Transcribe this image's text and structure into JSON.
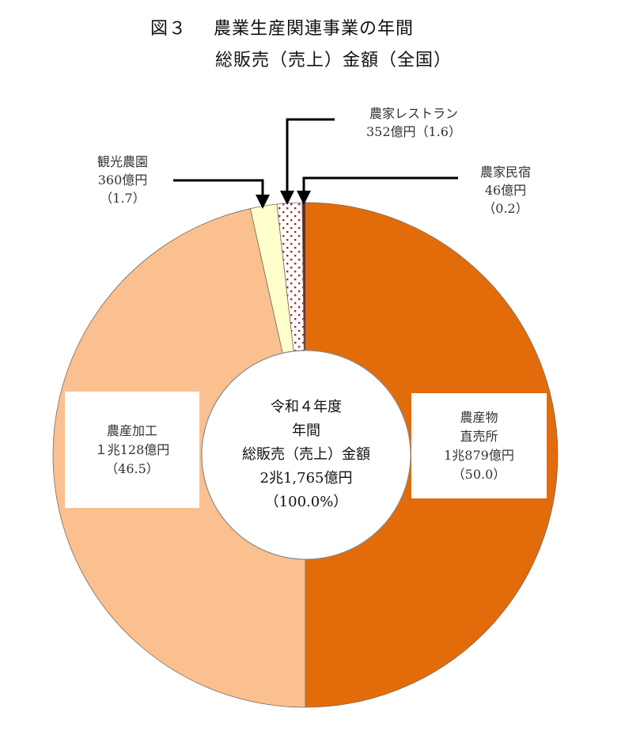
{
  "title": {
    "figure_no": "図３",
    "line1": "農業生産関連事業の年間",
    "line2": "総販売（売上）金額（全国）"
  },
  "center": {
    "line1": "令和４年度",
    "line2": "年間",
    "line3": "総販売（売上）金額",
    "line4": "2兆1,765億円",
    "line5": "（100.0%）"
  },
  "labels": {
    "chokubaisho": {
      "name1": "農産物",
      "name2": "直売所",
      "amount": "1兆879億円",
      "pct": "（50.0）"
    },
    "kakou": {
      "name": "農産加工",
      "amount": "１兆128億円",
      "pct": "（46.5）"
    },
    "kankou": {
      "name": "観光農園",
      "amount": "360億円",
      "pct": "（1.7）"
    },
    "restaurant": {
      "name": "農家レストラン",
      "amount_pct": "352億円（1.6）"
    },
    "minshuku": {
      "name": "農家民宿",
      "amount": "46億円",
      "pct": "（0.2）"
    }
  },
  "colors": {
    "chokubaisho": "#E36C0A",
    "kakou": "#FAC090",
    "kankou": "#FFFFCC",
    "restaurant_bg": "#FFFFFF",
    "restaurant_dots": "#8B3A3A",
    "minshuku": "#632523"
  },
  "chart_data": {
    "type": "pie",
    "subtype": "donut",
    "title": "図３　農業生産関連事業の年間総販売（売上）金額（全国）",
    "center_text": "令和４年度 年間 総販売（売上）金額 2兆1,765億円（100.0%）",
    "total": {
      "label": "総販売（売上）金額",
      "value_oku_yen": 21765,
      "display": "2兆1,765億円",
      "pct": 100.0
    },
    "unit": "億円",
    "start_angle": "12 o'clock, clockwise",
    "categories": [
      "農産物直売所",
      "農産加工",
      "観光農園",
      "農家レストラン",
      "農家民宿"
    ],
    "values": [
      10879,
      10128,
      360,
      352,
      46
    ],
    "value_labels": [
      "1兆879億円",
      "1兆128億円",
      "360億円",
      "352億円",
      "46億円"
    ],
    "percentages": [
      50.0,
      46.5,
      1.7,
      1.6,
      0.2
    ],
    "slice_colors": [
      "#E36C0A",
      "#FAC090",
      "#FFFFCC",
      "dotted white/#8B3A3A",
      "#632523"
    ],
    "legend": "none (direct labels with leader arrows for small slices)"
  }
}
